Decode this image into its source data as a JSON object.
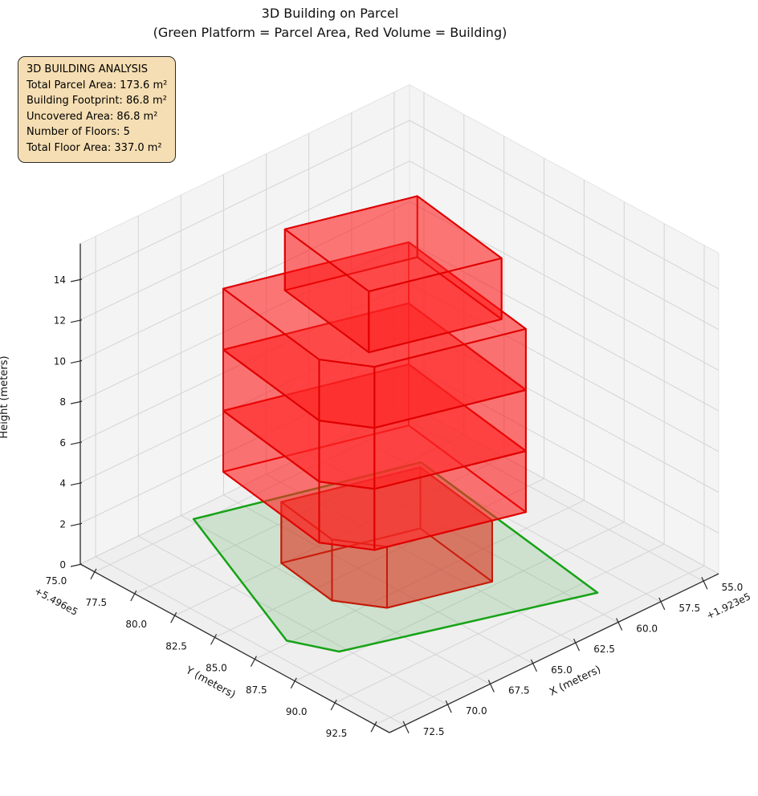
{
  "title": {
    "line1": "3D Building on Parcel",
    "line2": "(Green Platform = Parcel Area, Red Volume = Building)"
  },
  "info_box": {
    "title": "3D BUILDING ANALYSIS",
    "lines": [
      "Total Parcel Area: 173.6 m²",
      "Building Footprint: 86.8 m²",
      "Uncovered Area: 86.8 m²",
      "Number of Floors: 5",
      "Total Floor Area: 337.0 m²"
    ],
    "background": "#f5deb3",
    "border_color": "#2b2b2b"
  },
  "chart_data": {
    "type": "3d-building",
    "grid": true,
    "axes": {
      "x": {
        "label": "X (meters)",
        "ticks": [
          "55.0",
          "57.5",
          "60.0",
          "62.5",
          "65.0",
          "67.5",
          "70.0",
          "72.5"
        ],
        "offset_text": "+1.923e5",
        "lim": [
          54.1,
          73.4
        ]
      },
      "y": {
        "label": "Y (meters)",
        "ticks": [
          "75.0",
          "77.5",
          "80.0",
          "82.5",
          "85.0",
          "87.5",
          "90.0",
          "92.5"
        ],
        "offset_text": "+5.496e5",
        "lim": [
          74.1,
          93.4
        ]
      },
      "z": {
        "label": "Height (meters)",
        "ticks": [
          "0",
          "2",
          "4",
          "6",
          "8",
          "10",
          "12",
          "14"
        ],
        "lim": [
          0,
          15.75
        ]
      }
    },
    "parcel": {
      "area_m2": 173.6,
      "z": 0,
      "fill": "rgba(46,160,46,0.17)",
      "edge": "#16a316",
      "polygon": [
        [
          57.0,
          77.9
        ],
        [
          67.31,
          74.69
        ],
        [
          71.35,
          84.8
        ],
        [
          70.34,
          87.0
        ],
        [
          58.95,
          91.0
        ]
      ]
    },
    "building": {
      "footprint_m2": 86.8,
      "uncovered_m2": 86.8,
      "num_floors": 5,
      "total_floor_area_m2": 337.0,
      "floor_height_m": 3,
      "edge": "#e00000",
      "side_fill": "rgba(255,16,16,0.35)",
      "top_fill": "rgba(255,46,46,0.40)",
      "bottom_fill": "rgba(255,60,60,0.42)",
      "levels": [
        {
          "name": "floor-1",
          "z0": 0,
          "z1": 3,
          "polygon": [
            [
              60.79,
              81.9
            ],
            [
              67.09,
              79.93
            ],
            [
              67.65,
              83.69
            ],
            [
              66.36,
              85.75
            ],
            [
              61.59,
              87.24
            ]
          ]
        },
        {
          "name": "floor-2",
          "z0": 3,
          "z1": 6,
          "polygon": [
            [
              58.76,
              79.01
            ],
            [
              67.17,
              76.39
            ],
            [
              68.23,
              83.51
            ],
            [
              66.93,
              85.57
            ],
            [
              60.06,
              87.71
            ]
          ]
        },
        {
          "name": "floor-3",
          "z0": 6,
          "z1": 9,
          "polygon": [
            [
              58.76,
              79.01
            ],
            [
              67.17,
              76.39
            ],
            [
              68.23,
              83.51
            ],
            [
              66.93,
              85.57
            ],
            [
              60.06,
              87.71
            ]
          ]
        },
        {
          "name": "floor-4",
          "z0": 9,
          "z1": 12,
          "polygon": [
            [
              58.76,
              79.01
            ],
            [
              67.17,
              76.39
            ],
            [
              68.23,
              83.51
            ],
            [
              66.93,
              85.57
            ],
            [
              60.06,
              87.71
            ]
          ]
        },
        {
          "name": "floor-5",
          "z0": 12,
          "z1": 15,
          "polygon": [
            [
              59.34,
              80.17
            ],
            [
              65.35,
              78.3
            ],
            [
              66.28,
              84.53
            ],
            [
              60.26,
              86.41
            ]
          ]
        }
      ]
    }
  }
}
